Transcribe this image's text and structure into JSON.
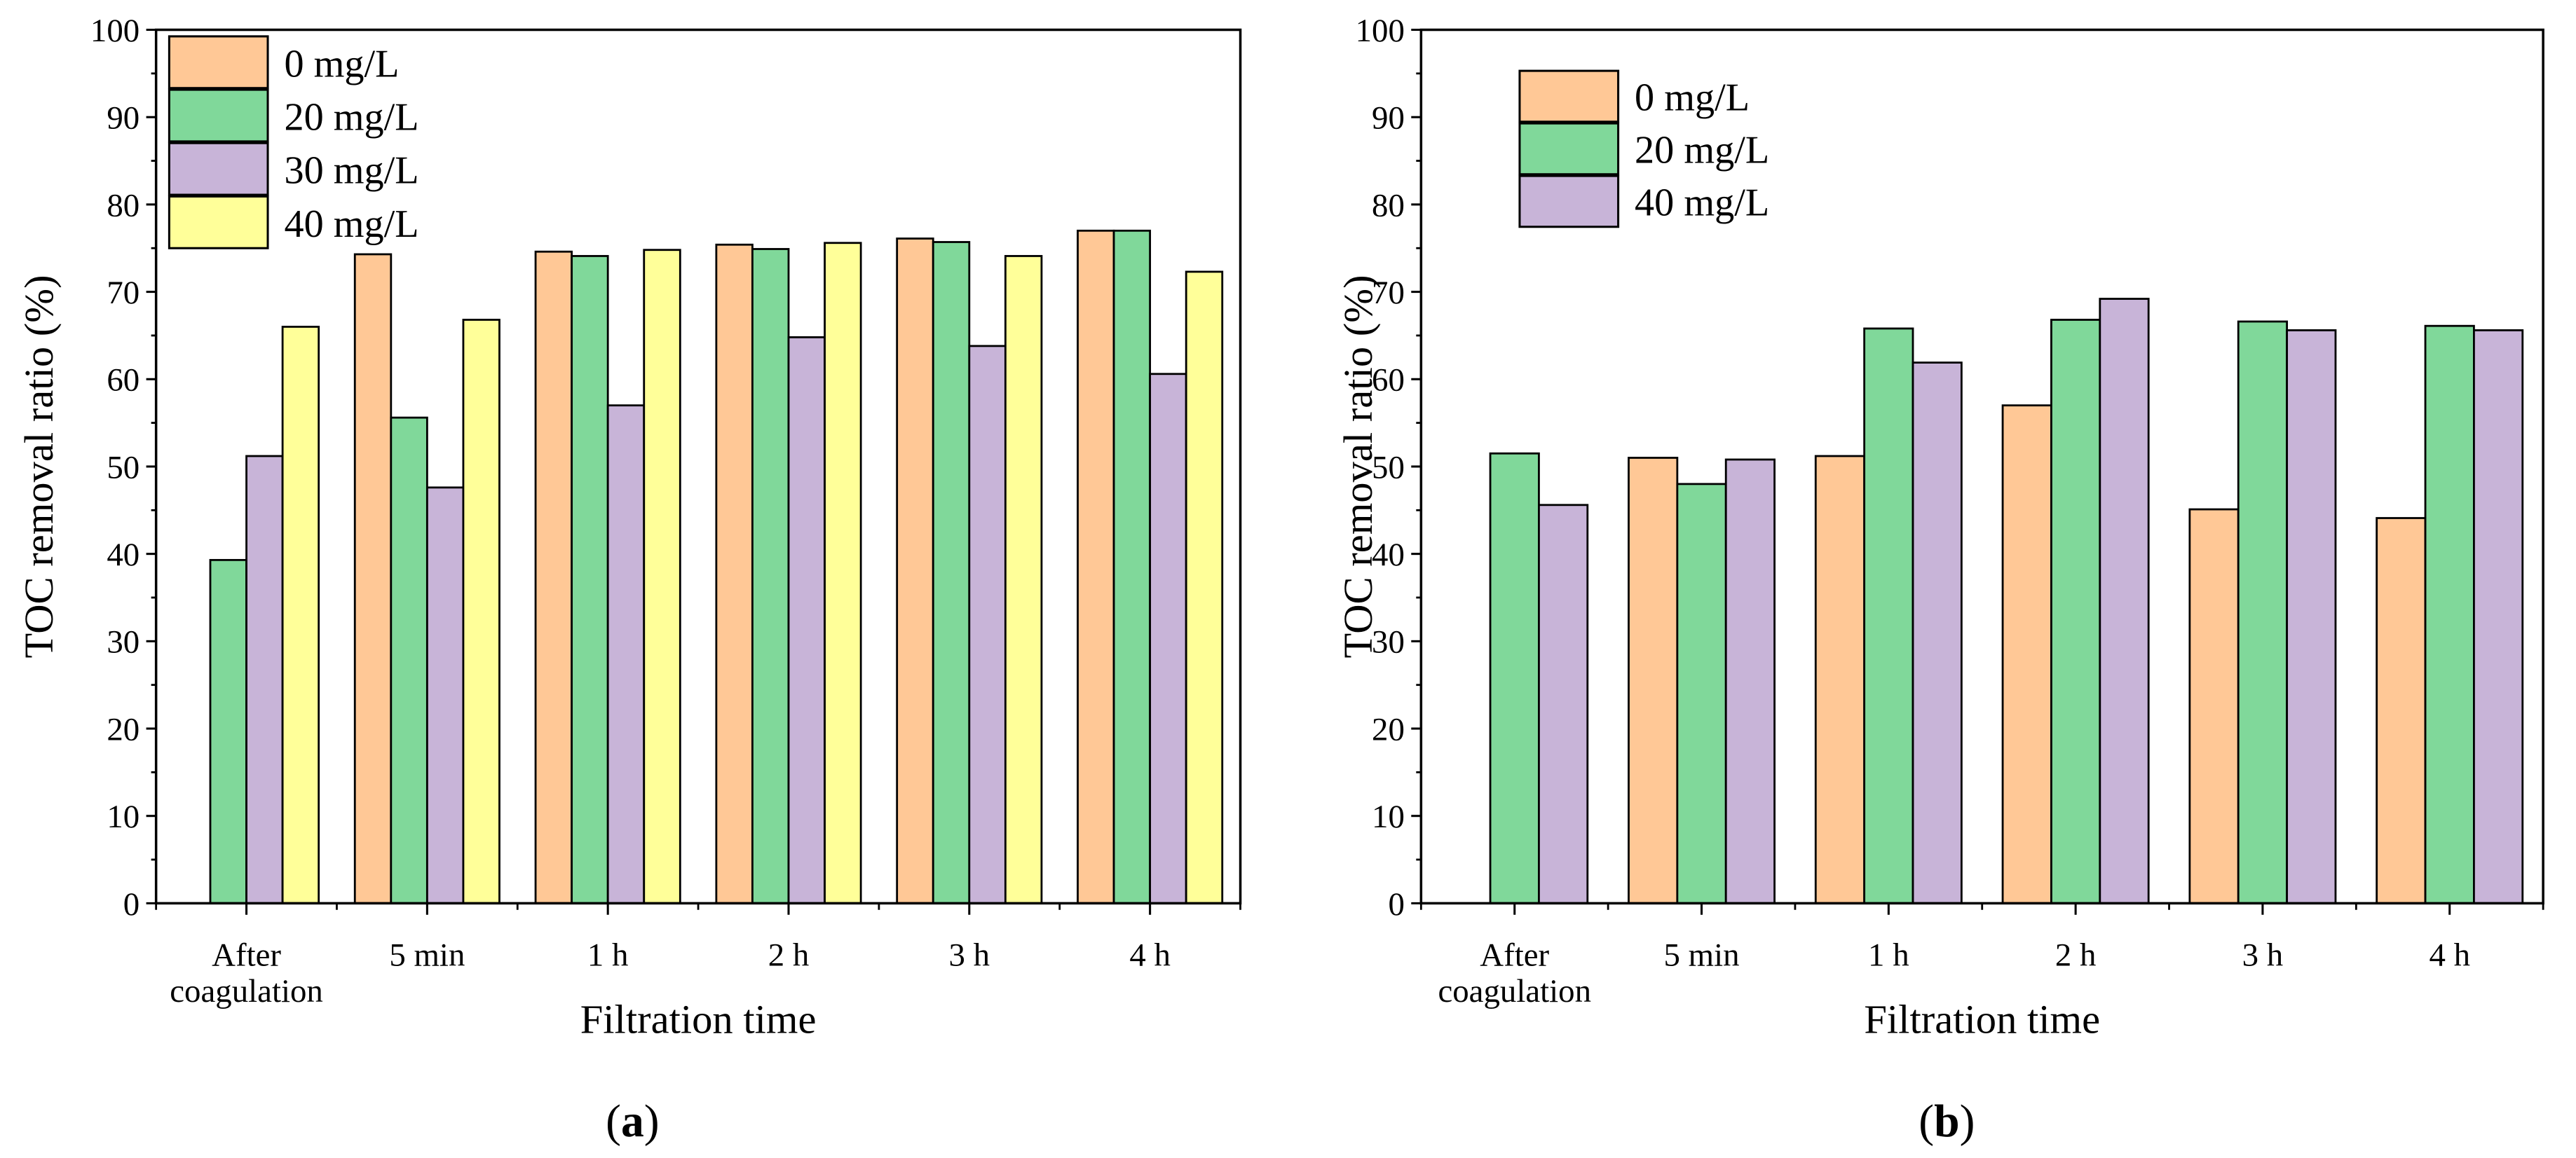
{
  "chart_data": [
    {
      "type": "bar",
      "panel_label": "a",
      "xlabel": "Filtration time",
      "ylabel": "TOC removal ratio (%)",
      "ylim": [
        0,
        100
      ],
      "yticks": [
        "0",
        "10",
        "20",
        "30",
        "40",
        "50",
        "60",
        "70",
        "80",
        "90",
        "100"
      ],
      "categories": [
        [
          "After",
          "coagulation"
        ],
        [
          "5 min"
        ],
        [
          "1 h"
        ],
        [
          "2 h"
        ],
        [
          "3 h"
        ],
        [
          "4 h"
        ]
      ],
      "legend_position": "top-left",
      "series": [
        {
          "name": "0 mg/L",
          "color": "#FFC896",
          "values": [
            null,
            74.3,
            74.6,
            75.4,
            76.1,
            77.0
          ]
        },
        {
          "name": "20 mg/L",
          "color": "#80D89A",
          "values": [
            39.3,
            55.6,
            74.1,
            74.9,
            75.7,
            77.0
          ]
        },
        {
          "name": "30 mg/L",
          "color": "#C8B4D8",
          "values": [
            51.2,
            47.6,
            57.0,
            64.8,
            63.8,
            60.6
          ]
        },
        {
          "name": "40 mg/L",
          "color": "#FFFF99",
          "values": [
            66.0,
            66.8,
            74.8,
            75.6,
            74.1,
            72.3
          ]
        }
      ]
    },
    {
      "type": "bar",
      "panel_label": "b",
      "xlabel": "Filtration time",
      "ylabel": "TOC removal ratio (%)",
      "ylim": [
        0,
        100
      ],
      "yticks": [
        "0",
        "10",
        "20",
        "30",
        "40",
        "50",
        "60",
        "70",
        "80",
        "90",
        "100"
      ],
      "categories": [
        [
          "After",
          "coagulation"
        ],
        [
          "5 min"
        ],
        [
          "1 h"
        ],
        [
          "2 h"
        ],
        [
          "3 h"
        ],
        [
          "4 h"
        ]
      ],
      "legend_position": "top-left",
      "series": [
        {
          "name": "0 mg/L",
          "color": "#FFC896",
          "values": [
            null,
            51.0,
            51.2,
            57.0,
            45.1,
            44.1
          ]
        },
        {
          "name": "20 mg/L",
          "color": "#80D89A",
          "values": [
            51.5,
            48.0,
            65.8,
            66.8,
            66.6,
            66.1
          ]
        },
        {
          "name": "40 mg/L",
          "color": "#C8B4D8",
          "values": [
            45.6,
            50.8,
            61.9,
            69.2,
            65.6,
            65.6
          ]
        }
      ]
    }
  ]
}
